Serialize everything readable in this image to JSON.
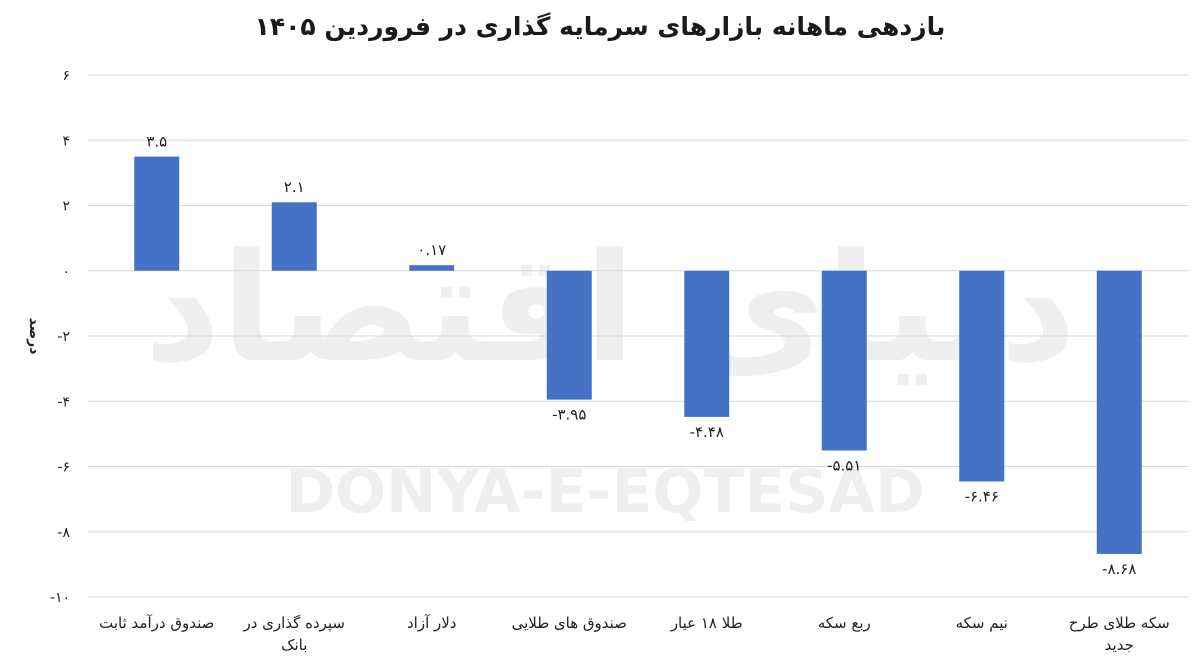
{
  "chart_data": {
    "type": "bar",
    "title": "بازدهی ماهانه بازارهای سرمایه گذاری در فروردین ۱۴۰۵",
    "ylabel": "درصد",
    "xlabel": "",
    "ylim": [
      -10,
      6
    ],
    "yticks": [
      6,
      4,
      2,
      0,
      -2,
      -4,
      -6,
      -8,
      -10
    ],
    "ytick_labels": [
      "۶",
      "۴",
      "۲",
      "۰",
      "-۲",
      "-۴",
      "-۶",
      "-۸",
      "-۱۰"
    ],
    "categories": [
      [
        "صندوق درآمد ثابت"
      ],
      [
        "سپرده گذاری در",
        "بانک"
      ],
      [
        "دلار آزاد"
      ],
      [
        "صندوق های طلایی"
      ],
      [
        "طلا ۱۸ عیار"
      ],
      [
        "ربع سکه"
      ],
      [
        "نیم سکه"
      ],
      [
        "سکه طلای طرح",
        "جدید"
      ]
    ],
    "values": [
      3.5,
      2.1,
      0.17,
      -3.95,
      -4.48,
      -5.51,
      -6.46,
      -8.68
    ],
    "data_labels": [
      "۳.۵",
      "۲.۱",
      "۰.۱۷",
      "-۳.۹۵",
      "-۴.۴۸",
      "-۵.۵۱",
      "-۶.۴۶",
      "-۸.۶۸"
    ],
    "grid": true,
    "legend": "none",
    "bar_color": "#4472C4",
    "grid_color": "#d9d9d9"
  },
  "watermark": {
    "latin": "DONYA-E-EQTESAD",
    "persian": "دنیای اقتصاد"
  }
}
